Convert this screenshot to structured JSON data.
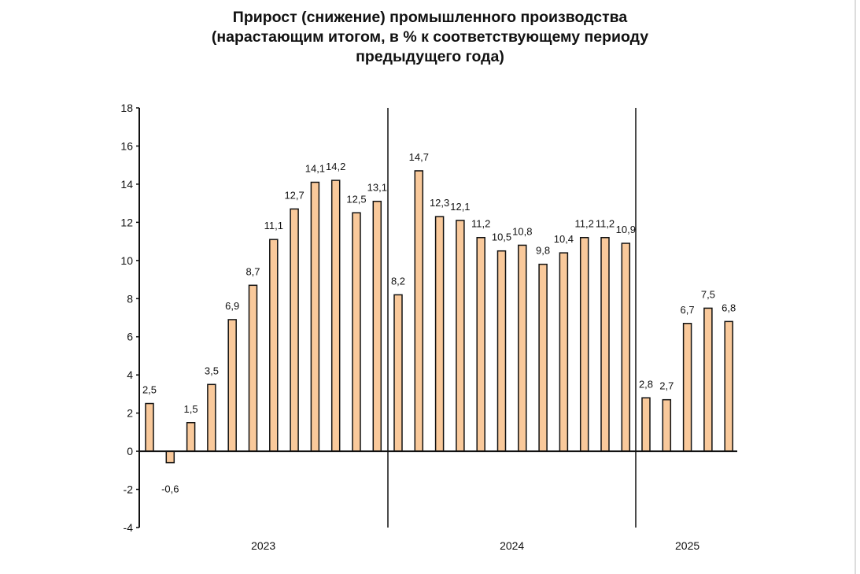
{
  "chart_data": {
    "type": "bar",
    "title": [
      "Прирост (снижение) промышленного производства",
      "(нарастающим итогом, в % к соответствующему периоду",
      "предыдущего года)"
    ],
    "xlabel": "",
    "ylabel": "",
    "ylim": [
      -4,
      18
    ],
    "yticks": [
      -4,
      -2,
      0,
      2,
      4,
      6,
      8,
      10,
      12,
      14,
      16,
      18
    ],
    "grid": false,
    "colors": {
      "bar": "#f9c99b",
      "stroke": "#111111"
    },
    "groups": [
      {
        "label": "2023",
        "values": [
          2.5,
          -0.6,
          1.5,
          3.5,
          6.9,
          8.7,
          11.1,
          12.7,
          14.1,
          14.2,
          12.5,
          13.1
        ],
        "labels": [
          "2,5",
          "-0,6",
          "1,5",
          "3,5",
          "6,9",
          "8,7",
          "11,1",
          "12,7",
          "14,1",
          "14,2",
          "12,5",
          "13,1"
        ]
      },
      {
        "label": "2024",
        "values": [
          8.2,
          14.7,
          12.3,
          12.1,
          11.2,
          10.5,
          10.8,
          9.8,
          10.4,
          11.2,
          11.2,
          10.9
        ],
        "labels": [
          "8,2",
          "14,7",
          "12,3",
          "12,1",
          "11,2",
          "10,5",
          "10,8",
          "9,8",
          "10,4",
          "11,2",
          "11,2",
          "10,9"
        ]
      },
      {
        "label": "2025",
        "values": [
          2.8,
          2.7,
          6.7,
          7.5,
          6.8
        ],
        "labels": [
          "2,8",
          "2,7",
          "6,7",
          "7,5",
          "6,8"
        ]
      }
    ]
  }
}
